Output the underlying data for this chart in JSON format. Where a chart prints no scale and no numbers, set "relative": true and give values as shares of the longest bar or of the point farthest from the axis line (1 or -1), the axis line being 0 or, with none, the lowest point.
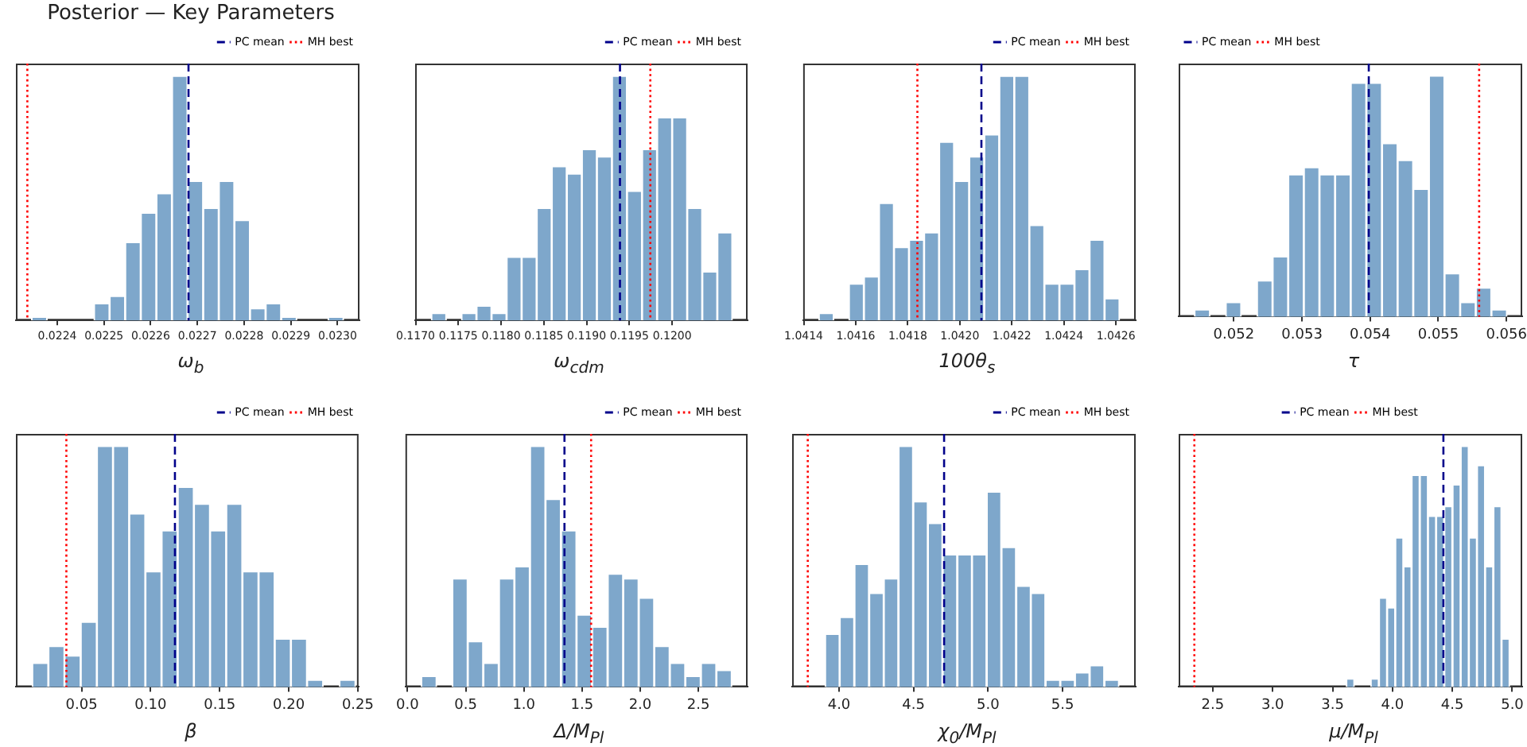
{
  "chart_data": [
    {
      "type": "bar",
      "title": "Posterior — Key Parameters",
      "xlabel": "ω$_{b}$",
      "relative": true,
      "color": "#7ea7cb",
      "grid": false,
      "legend": "top right",
      "tick_labels": "x",
      "x": [
        0.0223617,
        0.0223951,
        0.0224285,
        0.0224619,
        0.0224953,
        0.0225287,
        0.0225621,
        0.0225955,
        0.0226289,
        0.0226623,
        0.0226957,
        0.0227291,
        0.0227625,
        0.0227959,
        0.0228293,
        0.0228627,
        0.0228961,
        0.0229295,
        0.0229629,
        0.0229963
      ],
      "values": [
        0.015,
        0,
        0,
        0,
        0.07,
        0.1,
        0.32,
        0.44,
        0.52,
        1,
        0.57,
        0.46,
        0.57,
        0.41,
        0.05,
        0.07,
        0.015,
        0,
        0,
        0.015
      ],
      "xlim": [
        0.0223115,
        0.023047
      ],
      "xticks": [
        0.0224,
        0.0225,
        0.0226,
        0.0227,
        0.0228,
        0.0229,
        {
          "value": 0.023,
          "label": "0.0230"
        }
      ],
      "ref_lines": [
        {
          "axis": "x",
          "value": 0.022681,
          "label": "PC mean",
          "color": "#00008b",
          "line_style": "dashed"
        },
        {
          "axis": "x",
          "value": 0.022336,
          "label": "MH best",
          "color": "#ff0000",
          "line_style": "dotted"
        }
      ]
    },
    {
      "type": "bar",
      "xlabel": "ω$_{cdm}$",
      "relative": true,
      "color": "#7ea7cb",
      "grid": false,
      "legend": "top right",
      "tick_labels": "x",
      "x": [
        0.117272,
        0.117448,
        0.117624,
        0.1178,
        0.117976,
        0.118152,
        0.118328,
        0.118504,
        0.11868,
        0.118856,
        0.119032,
        0.119208,
        0.119384,
        0.11956,
        0.119736,
        0.119912,
        0.120088,
        0.120264,
        0.12044,
        0.120616
      ],
      "values": [
        0.03,
        0,
        0.03,
        0.06,
        0.03,
        0.26,
        0.26,
        0.46,
        0.63,
        0.6,
        0.7,
        0.67,
        1,
        0.53,
        0.7,
        0.83,
        0.83,
        0.46,
        0.2,
        0.36
      ],
      "xlim": [
        0.116995,
        0.120882
      ],
      "xticks": [
        {
          "value": 0.117,
          "label": "0.1170"
        },
        0.1175,
        {
          "value": 0.118,
          "label": "0.1180"
        },
        0.1185,
        {
          "value": 0.119,
          "label": "0.1190"
        },
        0.1195,
        {
          "value": 0.12,
          "label": "0.1200"
        }
      ],
      "ref_lines": [
        {
          "axis": "x",
          "value": 0.11939,
          "label": "PC mean",
          "color": "#00008b",
          "line_style": "dashed"
        },
        {
          "axis": "x",
          "value": 0.119745,
          "label": "MH best",
          "color": "#ff0000",
          "line_style": "dotted"
        }
      ]
    },
    {
      "type": "bar",
      "xlabel": "100θ$_{s}$",
      "relative": true,
      "color": "#7ea7cb",
      "grid": false,
      "legend": "top right",
      "tick_labels": "x",
      "x": [
        1.0414869,
        1.0415447,
        1.0416025,
        1.0416603,
        1.0417181,
        1.0417759,
        1.0418337,
        1.0418915,
        1.0419493,
        1.0420071,
        1.0420649,
        1.0421227,
        1.0421805,
        1.0422383,
        1.0422961,
        1.0423539,
        1.0424117,
        1.0424695,
        1.0425273,
        1.0425851
      ],
      "values": [
        0.03,
        0,
        0.15,
        0.18,
        0.48,
        0.3,
        0.33,
        0.36,
        0.73,
        0.57,
        0.67,
        0.76,
        1,
        1,
        0.39,
        0.15,
        0.15,
        0.21,
        0.33,
        0.09
      ],
      "xlim": [
        1.041398,
        1.042676
      ],
      "xticks": [
        1.0414,
        1.0416,
        1.0418,
        {
          "value": 1.042,
          "label": "1.0420"
        },
        1.0422,
        1.0424,
        1.0426
      ],
      "ref_lines": [
        {
          "axis": "x",
          "value": 1.042083,
          "label": "PC mean",
          "color": "#00008b",
          "line_style": "dashed"
        },
        {
          "axis": "x",
          "value": 1.041837,
          "label": "MH best",
          "color": "#ff0000",
          "line_style": "dotted"
        }
      ]
    },
    {
      "type": "bar",
      "xlabel": "τ",
      "relative": true,
      "color": "#7ea7cb",
      "grid": false,
      "legend": "top left",
      "tick_labels": "x",
      "x": [
        0.0515367,
        0.051766,
        0.0519953,
        0.0522246,
        0.0524539,
        0.0526832,
        0.0529125,
        0.0531418,
        0.0533711,
        0.0536004,
        0.0538297,
        0.054059,
        0.0542883,
        0.0545176,
        0.0547469,
        0.0549762,
        0.0552055,
        0.0554348,
        0.0556641,
        0.0558934
      ],
      "values": [
        0.03,
        0,
        0.06,
        0,
        0.15,
        0.25,
        0.59,
        0.62,
        0.59,
        0.59,
        0.97,
        0.97,
        0.72,
        0.65,
        0.53,
        1,
        0.18,
        0.06,
        0.12,
        0.03
      ],
      "xlim": [
        0.051191,
        0.056231
      ],
      "xticks": [
        0.052,
        0.053,
        0.054,
        0.055,
        0.056
      ],
      "ref_lines": [
        {
          "axis": "x",
          "value": 0.05398,
          "label": "PC mean",
          "color": "#00008b",
          "line_style": "dashed"
        },
        {
          "axis": "x",
          "value": 0.055599,
          "label": "MH best",
          "color": "#ff0000",
          "line_style": "dotted"
        }
      ]
    },
    {
      "type": "bar",
      "xlabel": "β",
      "relative": true,
      "color": "#7ea7cb",
      "grid": false,
      "legend": "top right",
      "tick_labels": "x",
      "x": [
        0.020113,
        0.031818,
        0.043523,
        0.055228,
        0.066933,
        0.078638,
        0.090343,
        0.102048,
        0.113753,
        0.125458,
        0.137163,
        0.148868,
        0.160573,
        0.172278,
        0.183983,
        0.195688,
        0.207393,
        0.219098,
        0.230803,
        0.242508
      ],
      "values": [
        0.1,
        0.17,
        0.13,
        0.27,
        1,
        1,
        0.72,
        0.48,
        0.65,
        0.83,
        0.76,
        0.65,
        0.76,
        0.48,
        0.48,
        0.2,
        0.2,
        0.03,
        0,
        0.03
      ],
      "xlim": [
        0.002475,
        0.25053
      ],
      "xticks": [
        0.05,
        {
          "value": 0.1,
          "label": "0.10"
        },
        0.15,
        {
          "value": 0.2,
          "label": "0.20"
        },
        0.25
      ],
      "ref_lines": [
        {
          "axis": "x",
          "value": 0.1176,
          "label": "PC mean",
          "color": "#00008b",
          "line_style": "dashed"
        },
        {
          "axis": "x",
          "value": 0.039,
          "label": "MH best",
          "color": "#ff0000",
          "line_style": "dotted"
        }
      ]
    },
    {
      "type": "bar",
      "xlabel": "Δ/M$_{Pl}$",
      "relative": true,
      "color": "#7ea7cb",
      "grid": false,
      "legend": "top right",
      "tick_labels": "x",
      "x": [
        0.184,
        0.317,
        0.451,
        0.584,
        0.718,
        0.852,
        0.985,
        1.119,
        1.252,
        1.386,
        1.519,
        1.653,
        1.787,
        1.92,
        2.054,
        2.187,
        2.321,
        2.454,
        2.588,
        2.721
      ],
      "values": [
        0.045,
        0,
        0.45,
        0.19,
        0.1,
        0.45,
        0.5,
        1,
        0.78,
        0.65,
        0.3,
        0.25,
        0.47,
        0.45,
        0.37,
        0.17,
        0.1,
        0.045,
        0.1,
        0.07
      ],
      "xlim": [
        -0.018,
        2.923
      ],
      "xticks": [
        {
          "value": 0,
          "label": "0.0"
        },
        0.5,
        {
          "value": 1,
          "label": "1.0"
        },
        1.5,
        {
          "value": 2,
          "label": "2.0"
        },
        2.5
      ],
      "ref_lines": [
        {
          "axis": "x",
          "value": 1.349,
          "label": "PC mean",
          "color": "#00008b",
          "line_style": "dashed"
        },
        {
          "axis": "x",
          "value": 1.578,
          "label": "MH best",
          "color": "#ff0000",
          "line_style": "dotted"
        }
      ]
    },
    {
      "type": "bar",
      "xlabel": "χ$_{0}$/M$_{Pl}$",
      "relative": true,
      "color": "#7ea7cb",
      "grid": false,
      "legend": "top right",
      "tick_labels": "x",
      "x": [
        3.955,
        4.053,
        4.152,
        4.251,
        4.349,
        4.448,
        4.547,
        4.645,
        4.744,
        4.843,
        4.941,
        5.04,
        5.139,
        5.238,
        5.336,
        5.435,
        5.534,
        5.632,
        5.731,
        5.83
      ],
      "values": [
        0.22,
        0.29,
        0.51,
        0.39,
        0.45,
        1,
        0.77,
        0.68,
        0.55,
        0.55,
        0.55,
        0.81,
        0.58,
        0.42,
        0.39,
        0.03,
        0.03,
        0.06,
        0.09,
        0.03
      ],
      "xlim": [
        3.685,
        5.991
      ],
      "xticks": [
        {
          "value": 4,
          "label": "4.0"
        },
        4.5,
        {
          "value": 5,
          "label": "5.0"
        },
        5.5
      ],
      "ref_lines": [
        {
          "axis": "x",
          "value": 4.705,
          "label": "PC mean",
          "color": "#00008b",
          "line_style": "dashed"
        },
        {
          "axis": "x",
          "value": 3.79,
          "label": "MH best",
          "color": "#ff0000",
          "line_style": "dotted"
        }
      ]
    },
    {
      "type": "bar",
      "xlabel": "μ/M$_{Pl}$",
      "relative": true,
      "color": "#7ea7cb",
      "grid": false,
      "legend": "top",
      "tick_labels": "x",
      "x": [
        3.648,
        3.716,
        3.784,
        3.852,
        3.921,
        3.989,
        4.057,
        4.125,
        4.193,
        4.262,
        4.33,
        4.398,
        4.466,
        4.535,
        4.603,
        4.671,
        4.739,
        4.807,
        4.876,
        4.944
      ],
      "values": [
        0.035,
        0,
        0,
        0.035,
        0.37,
        0.33,
        0.62,
        0.5,
        0.88,
        0.88,
        0.71,
        0.71,
        0.75,
        0.84,
        1,
        0.62,
        0.92,
        0.5,
        0.75,
        0.2
      ],
      "xlim": [
        2.215,
        5.083
      ],
      "xticks": [
        2.5,
        {
          "value": 3,
          "label": "3.0"
        },
        3.5,
        {
          "value": 4,
          "label": "4.0"
        },
        4.5,
        {
          "value": 5,
          "label": "5.0"
        }
      ],
      "ref_lines": [
        {
          "axis": "x",
          "value": 4.425,
          "label": "PC mean",
          "color": "#00008b",
          "line_style": "dashed"
        },
        {
          "axis": "x",
          "value": 2.346,
          "label": "MH best",
          "color": "#ff0000",
          "line_style": "dotted"
        }
      ]
    }
  ]
}
